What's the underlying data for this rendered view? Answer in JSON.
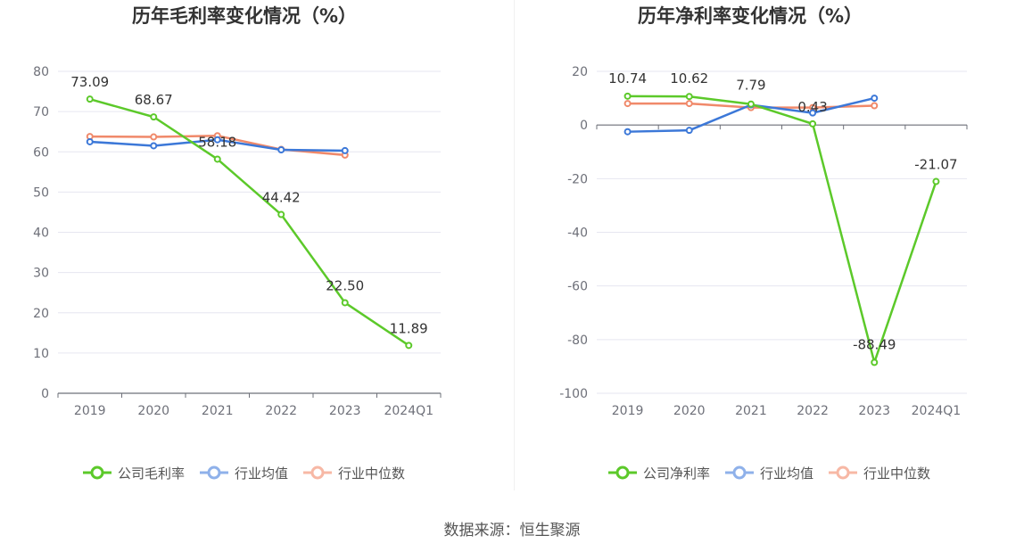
{
  "source": "数据来源：恒生聚源",
  "colors": {
    "company": "#5cc92a",
    "avg": "#3c78d8",
    "median": "#f0896a"
  },
  "chart_data": [
    {
      "type": "line",
      "title": "历年毛利率变化情况（%）",
      "categories": [
        "2019",
        "2020",
        "2021",
        "2022",
        "2023",
        "2024Q1"
      ],
      "ylim": [
        0,
        80
      ],
      "yticks": [
        0,
        10,
        20,
        30,
        40,
        50,
        60,
        70,
        80
      ],
      "series": [
        {
          "name": "公司毛利率",
          "values": [
            73.09,
            68.67,
            58.18,
            44.42,
            22.5,
            11.89
          ],
          "labels": [
            "73.09",
            "68.67",
            "58.18",
            "44.42",
            "22.50",
            "11.89"
          ]
        },
        {
          "name": "行业均值",
          "values": [
            62.5,
            61.5,
            63.0,
            60.5,
            60.3,
            null
          ]
        },
        {
          "name": "行业中位数",
          "values": [
            63.8,
            63.7,
            64.0,
            60.6,
            59.2,
            null
          ]
        }
      ]
    },
    {
      "type": "line",
      "title": "历年净利率变化情况（%）",
      "categories": [
        "2019",
        "2020",
        "2021",
        "2022",
        "2023",
        "2024Q1"
      ],
      "ylim": [
        -100,
        20
      ],
      "yticks": [
        -100,
        -80,
        -60,
        -40,
        -20,
        0,
        20
      ],
      "series": [
        {
          "name": "公司净利率",
          "values": [
            10.74,
            10.62,
            7.79,
            0.43,
            -88.49,
            -21.07
          ],
          "labels": [
            "10.74",
            "10.62",
            "7.79",
            "0.43",
            "-88.49",
            "-21.07"
          ]
        },
        {
          "name": "行业均值",
          "values": [
            -2.5,
            -2.0,
            7.5,
            4.5,
            10.0,
            null
          ]
        },
        {
          "name": "行业中位数",
          "values": [
            8.0,
            8.0,
            6.5,
            6.5,
            7.2,
            null
          ]
        }
      ]
    }
  ]
}
